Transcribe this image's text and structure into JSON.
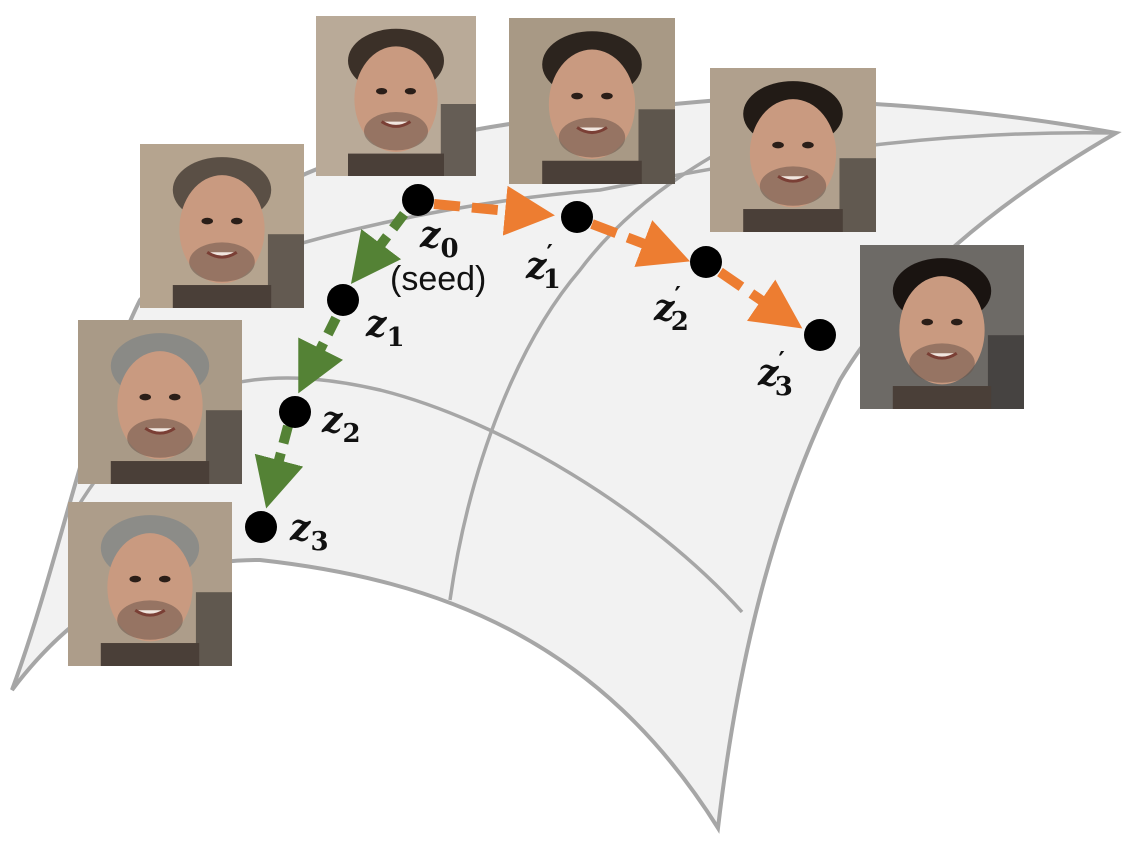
{
  "manifold": {
    "fill": "#f2f2f2",
    "stroke": "#a6a6a6"
  },
  "green_path": {
    "color": "#548235",
    "points": [
      {
        "label": "z",
        "subscript": "0",
        "note": "(seed)"
      },
      {
        "label": "z",
        "subscript": "1"
      },
      {
        "label": "z",
        "subscript": "2"
      },
      {
        "label": "z",
        "subscript": "3"
      }
    ]
  },
  "orange_path": {
    "color": "#ed7d31",
    "points": [
      {
        "label": "z",
        "subscript": "1",
        "prime": "′"
      },
      {
        "label": "z",
        "subscript": "2",
        "prime": "′"
      },
      {
        "label": "z",
        "subscript": "3",
        "prime": "′"
      }
    ]
  },
  "faces": [
    {
      "name": "face-seed",
      "variant": "seed"
    },
    {
      "name": "face-green-1",
      "variant": "green-1"
    },
    {
      "name": "face-green-2",
      "variant": "green-2"
    },
    {
      "name": "face-green-3",
      "variant": "green-3"
    },
    {
      "name": "face-orange-1",
      "variant": "orange-1"
    },
    {
      "name": "face-orange-2",
      "variant": "orange-2"
    },
    {
      "name": "face-orange-3",
      "variant": "orange-3"
    }
  ]
}
